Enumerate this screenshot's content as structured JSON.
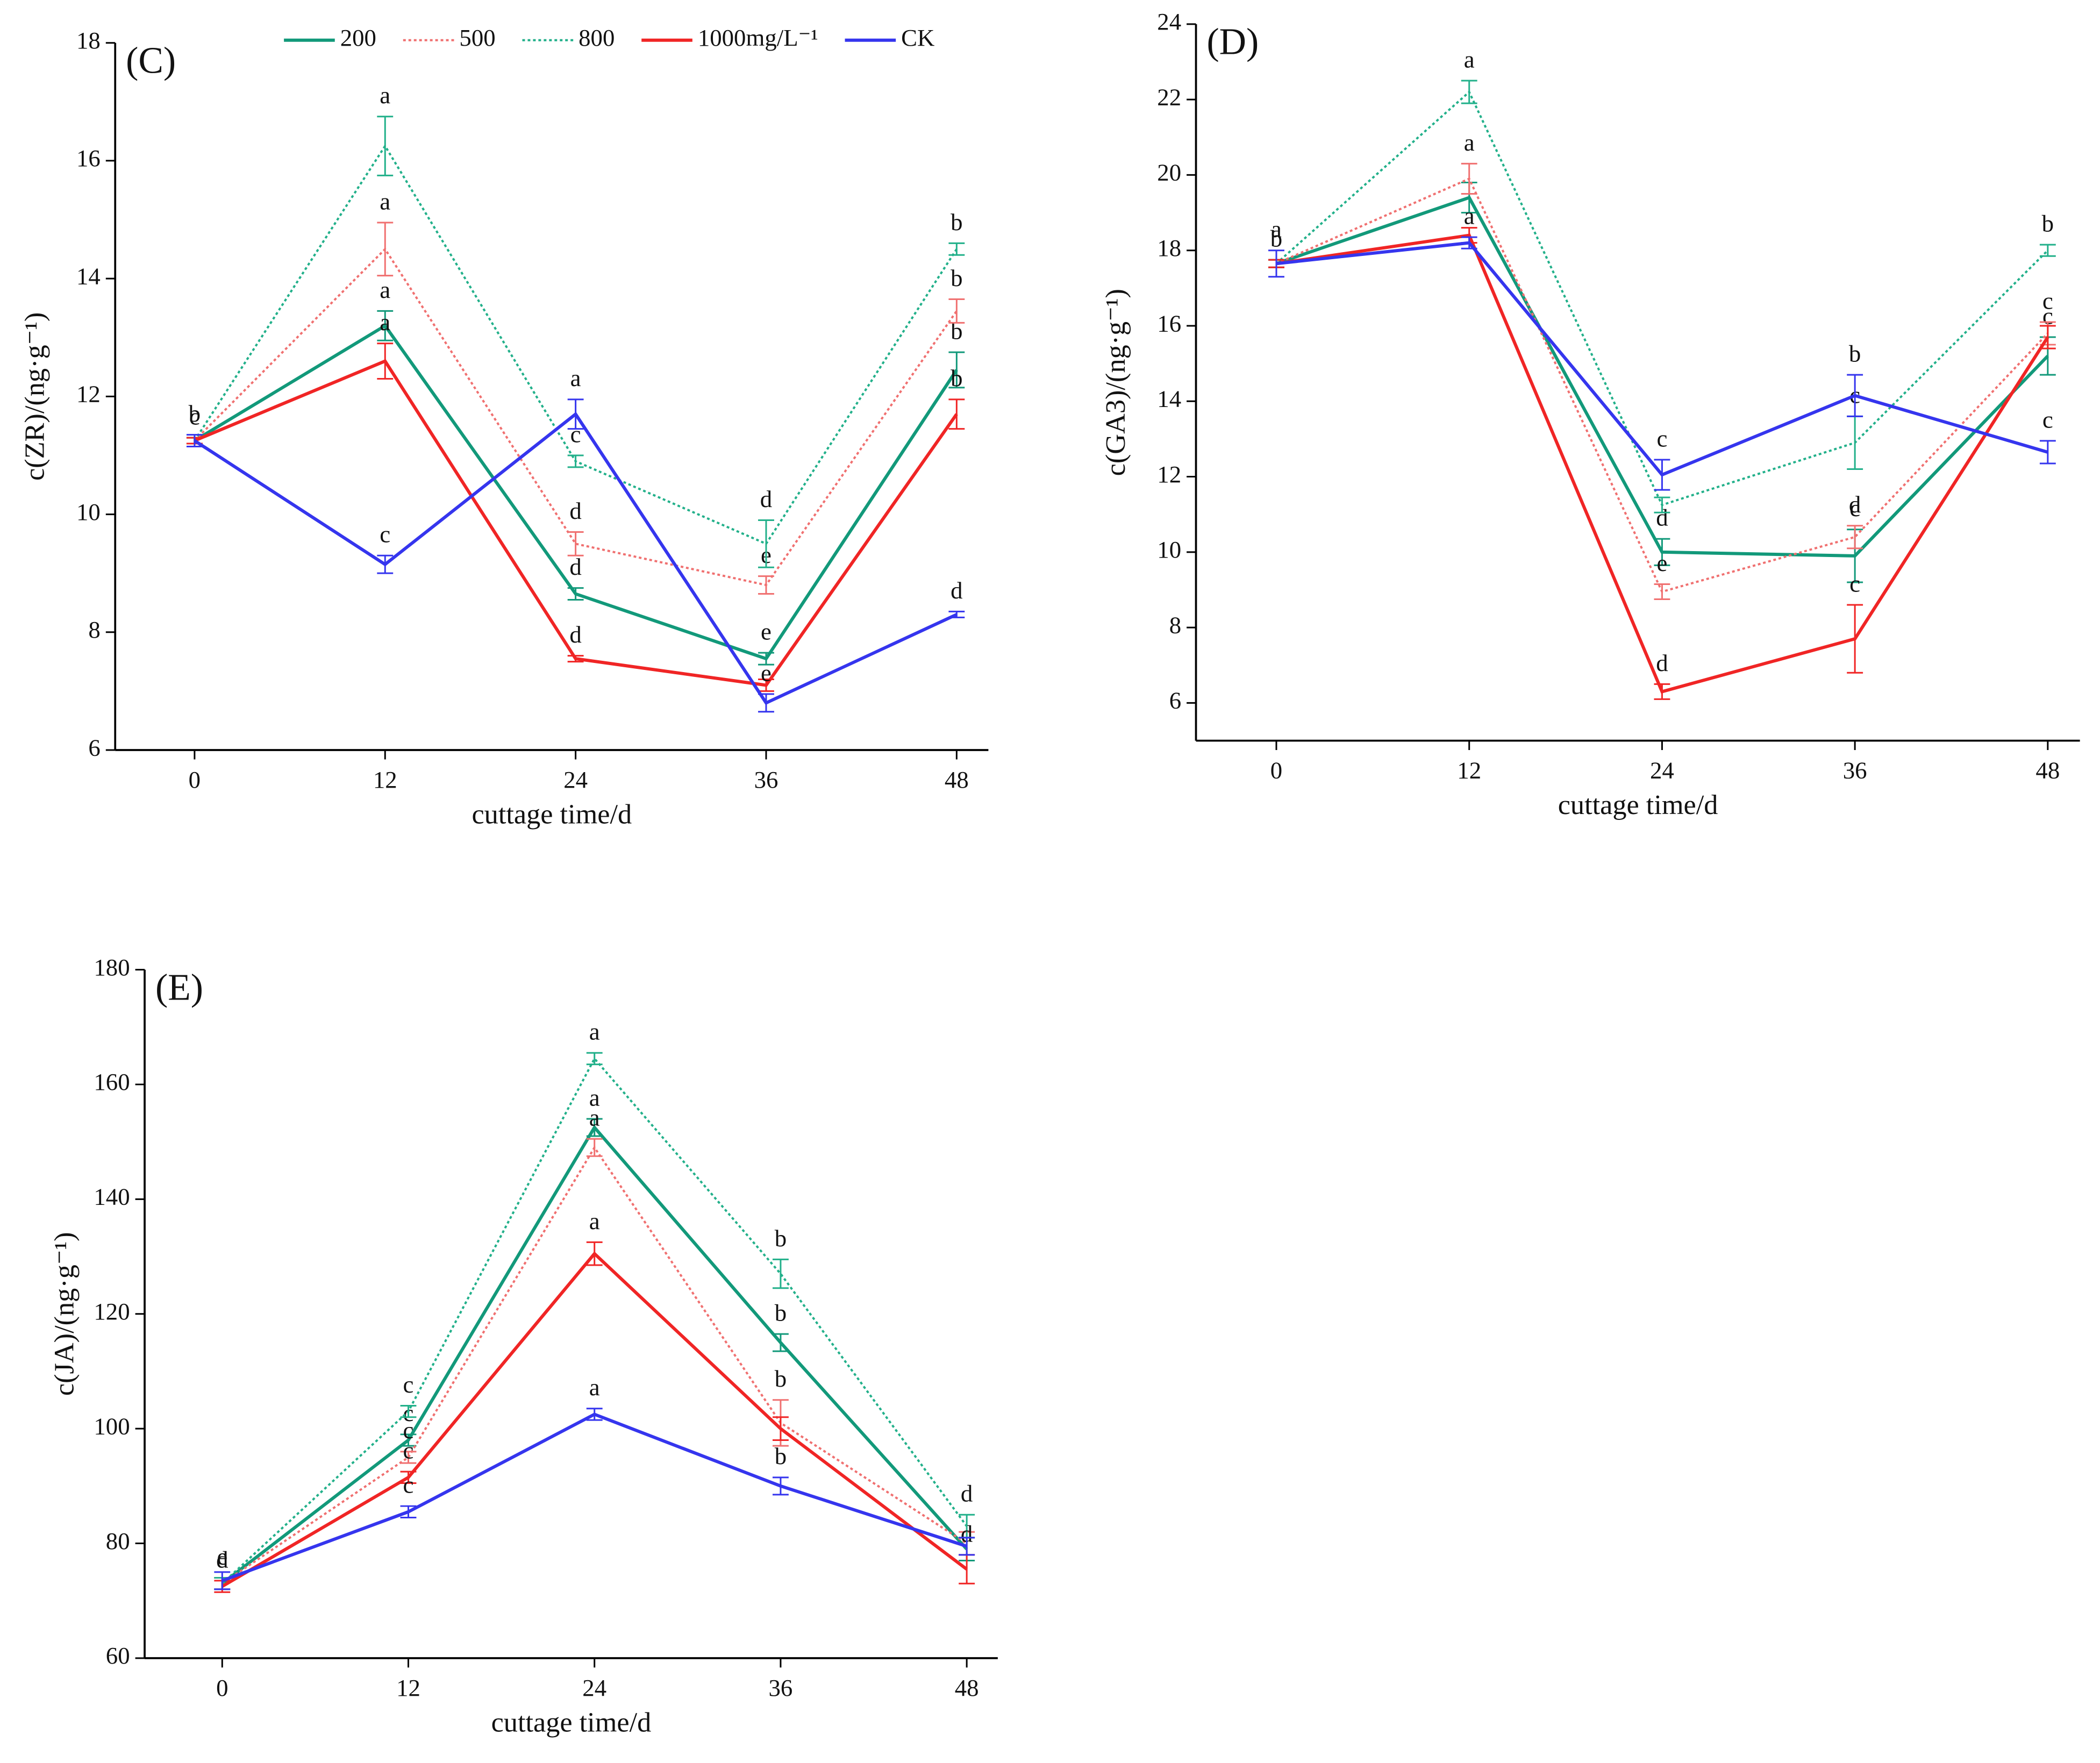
{
  "chart_data": [
    {
      "type": "line",
      "title": "(C)",
      "xlabel": "cuttage time/d",
      "ylabel": "c(ZR)/(ng·g⁻¹)",
      "x": [
        0,
        12,
        24,
        36,
        48
      ],
      "xlim": [
        -5,
        50
      ],
      "xticks": [
        0,
        12,
        24,
        36,
        48
      ],
      "ylim": [
        6,
        18
      ],
      "yticks": [
        6,
        8,
        10,
        12,
        14,
        16,
        18
      ],
      "legend": "top",
      "series": [
        {
          "name": "200",
          "color": "#12997a",
          "linestyle": "solid",
          "values": [
            11.25,
            13.2,
            8.65,
            7.55,
            12.45
          ],
          "errors": [
            0.05,
            0.25,
            0.1,
            0.1,
            0.3
          ],
          "letters": [
            null,
            "a",
            "d",
            "e",
            "b"
          ]
        },
        {
          "name": "500",
          "color": "#f07070",
          "linestyle": "dotted",
          "values": [
            11.25,
            14.5,
            9.5,
            8.8,
            13.45
          ],
          "errors": [
            0.05,
            0.45,
            0.2,
            0.15,
            0.2
          ],
          "letters": [
            null,
            "a",
            "d",
            "e",
            "b"
          ]
        },
        {
          "name": "800",
          "color": "#22b08a",
          "linestyle": "dotted",
          "values": [
            11.25,
            16.25,
            10.9,
            9.5,
            14.5
          ],
          "errors": [
            0.05,
            0.5,
            0.1,
            0.4,
            0.1
          ],
          "letters": [
            "c",
            "a",
            "c",
            "d",
            "b"
          ]
        },
        {
          "name": "1000mg/L⁻¹",
          "color": "#f02525",
          "linestyle": "solid",
          "values": [
            11.25,
            12.6,
            7.55,
            7.1,
            11.7
          ],
          "errors": [
            0.05,
            0.3,
            0.05,
            0.1,
            0.25
          ],
          "letters": [
            null,
            "a",
            "d",
            null,
            "b"
          ]
        },
        {
          "name": "CK",
          "color": "#3535ee",
          "linestyle": "solid",
          "values": [
            11.25,
            9.15,
            11.7,
            6.8,
            8.3
          ],
          "errors": [
            0.1,
            0.15,
            0.25,
            0.15,
            0.05
          ],
          "letters": [
            "b",
            "c",
            "a",
            "e",
            "d"
          ]
        }
      ]
    },
    {
      "type": "line",
      "title": "(D)",
      "xlabel": "cuttage time/d",
      "ylabel": "c(GA3)/(ng·g⁻¹)",
      "x": [
        0,
        12,
        24,
        36,
        48
      ],
      "xlim": [
        -5,
        50
      ],
      "xticks": [
        0,
        12,
        24,
        36,
        48
      ],
      "ylim": [
        5,
        24
      ],
      "yticks": [
        6,
        8,
        10,
        12,
        14,
        16,
        18,
        20,
        22,
        24
      ],
      "series": [
        {
          "color": "#12997a",
          "linestyle": "solid",
          "values": [
            17.65,
            19.4,
            10.0,
            9.9,
            15.2
          ],
          "errors": [
            0.1,
            0.4,
            0.35,
            0.7,
            0.5
          ],
          "letters": [
            null,
            null,
            "d",
            "c",
            "c"
          ]
        },
        {
          "color": "#f07070",
          "linestyle": "dotted",
          "values": [
            17.65,
            19.9,
            8.95,
            10.4,
            15.8
          ],
          "errors": [
            0.1,
            0.4,
            0.2,
            0.3,
            0.3
          ],
          "letters": [
            null,
            "a",
            "e",
            "d",
            "c"
          ]
        },
        {
          "color": "#22b08a",
          "linestyle": "dotted",
          "values": [
            17.65,
            22.2,
            11.25,
            12.9,
            18.0
          ],
          "errors": [
            0.1,
            0.3,
            0.2,
            0.7,
            0.15
          ],
          "letters": [
            "b",
            "a",
            null,
            "c",
            "b"
          ]
        },
        {
          "color": "#f02525",
          "linestyle": "solid",
          "values": [
            17.65,
            18.4,
            6.3,
            7.7,
            15.7
          ],
          "errors": [
            0.1,
            0.2,
            0.2,
            0.9,
            0.3
          ],
          "letters": [
            null,
            null,
            "d",
            "c",
            null
          ]
        },
        {
          "color": "#3535ee",
          "linestyle": "solid",
          "values": [
            17.65,
            18.2,
            12.05,
            14.15,
            12.65
          ],
          "errors": [
            0.35,
            0.15,
            0.4,
            0.55,
            0.3
          ],
          "letters": [
            "a",
            "a",
            "c",
            "b",
            "c"
          ]
        }
      ]
    },
    {
      "type": "line",
      "title": "(E)",
      "xlabel": "cuttage time/d",
      "ylabel": "c(JA)/(ng·g⁻¹)",
      "x": [
        0,
        12,
        24,
        36,
        48
      ],
      "xlim": [
        -5,
        50
      ],
      "xticks": [
        0,
        12,
        24,
        36,
        48
      ],
      "ylim": [
        60,
        180
      ],
      "yticks": [
        60,
        80,
        100,
        120,
        140,
        160,
        180
      ],
      "series": [
        {
          "color": "#12997a",
          "linestyle": "solid",
          "values": [
            73,
            98,
            152.5,
            115,
            79
          ],
          "errors": [
            1,
            1,
            1.5,
            1.5,
            2
          ],
          "letters": [
            null,
            "c",
            "a",
            "b",
            null
          ]
        },
        {
          "color": "#f07070",
          "linestyle": "dotted",
          "values": [
            73,
            95,
            149,
            101,
            80
          ],
          "errors": [
            1,
            1,
            1.5,
            4,
            2
          ],
          "letters": [
            null,
            "c",
            "a",
            "b",
            null
          ]
        },
        {
          "color": "#22b08a",
          "linestyle": "dotted",
          "values": [
            73,
            103,
            164.5,
            127,
            83
          ],
          "errors": [
            1,
            1,
            1,
            2.5,
            2
          ],
          "letters": [
            "e",
            "c",
            "a",
            "b",
            "d"
          ]
        },
        {
          "color": "#f02525",
          "linestyle": "solid",
          "values": [
            72.5,
            91.5,
            130.5,
            100,
            75.5
          ],
          "errors": [
            1,
            1,
            2,
            2,
            2.5
          ],
          "letters": [
            "d",
            "c",
            "a",
            null,
            "d"
          ]
        },
        {
          "color": "#3535ee",
          "linestyle": "solid",
          "values": [
            73.5,
            85.5,
            102.5,
            90,
            79.5
          ],
          "errors": [
            1.5,
            1,
            1,
            1.5,
            1.5
          ],
          "letters": [
            null,
            "c",
            "a",
            "b",
            null
          ]
        }
      ]
    }
  ]
}
